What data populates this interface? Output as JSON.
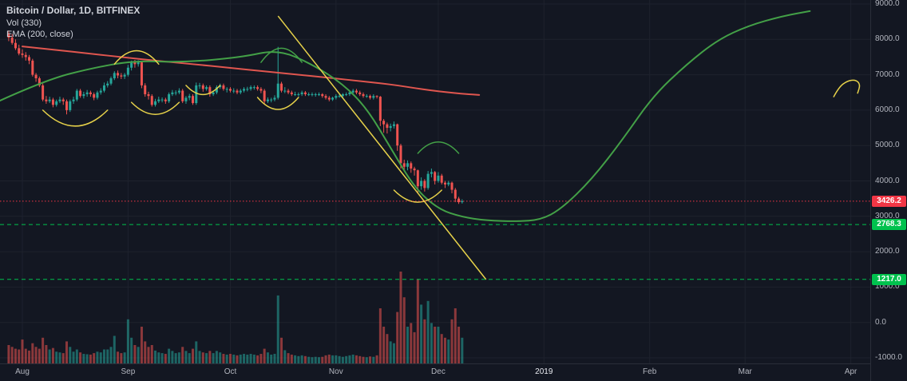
{
  "header": {
    "symbol_title": "Bitcoin / Dollar, 1D, BITFINEX",
    "volume_indicator": "Vol (330)",
    "ema_indicator": "EMA (200, close)"
  },
  "colors": {
    "background": "#131722",
    "grid": "#1e222d",
    "axis_text": "#b2b5be",
    "candle_up": "#26a69a",
    "candle_down": "#ef5350",
    "ema_line": "#e0564f",
    "drawn_curve": "#43a047",
    "trendline": "#e7d24a",
    "level_green": "#00c24e",
    "last_price": "#f23645"
  },
  "y_axis": {
    "ticks": [
      9000,
      8000,
      7000,
      6000,
      5000,
      4000,
      3000,
      2000,
      1000,
      0,
      -1000
    ]
  },
  "x_axis": {
    "labels": [
      {
        "text": "Aug",
        "day": 0
      },
      {
        "text": "Sep",
        "day": 31
      },
      {
        "text": "Oct",
        "day": 61
      },
      {
        "text": "Nov",
        "day": 92
      },
      {
        "text": "Dec",
        "day": 122
      },
      {
        "text": "2019",
        "day": 153,
        "year": true
      },
      {
        "text": "Feb",
        "day": 184
      },
      {
        "text": "Mar",
        "day": 212
      },
      {
        "text": "Apr",
        "day": 243
      }
    ]
  },
  "levels": [
    {
      "label": "3426.2",
      "price": 3426.2,
      "type": "last-price",
      "style": "dotted",
      "color_key": "last_price"
    },
    {
      "label": "2768.3",
      "price": 2768.3,
      "type": "support-level",
      "style": "dashed",
      "color_key": "level_green"
    },
    {
      "label": "1217.0",
      "price": 1217.0,
      "type": "support-level",
      "style": "dashed",
      "color_key": "level_green"
    }
  ],
  "chart_data": {
    "type": "candlestick",
    "title": "Bitcoin / Dollar, 1D, BITFINEX",
    "symbol": "BTC/USD",
    "timeframe": "1D",
    "exchange": "BITFINEX",
    "ylim": [
      -1000,
      9000
    ],
    "start_day": -4,
    "candles": [
      [
        8150,
        8250,
        7950,
        8050
      ],
      [
        8050,
        8150,
        7850,
        7900
      ],
      [
        7900,
        8000,
        7700,
        7750
      ],
      [
        7750,
        7850,
        7550,
        7600
      ],
      [
        7600,
        7720,
        7480,
        7560
      ],
      [
        7560,
        7640,
        7400,
        7500
      ],
      [
        7500,
        7560,
        7300,
        7400
      ],
      [
        7400,
        7450,
        6950,
        7000
      ],
      [
        7000,
        7050,
        6800,
        6900
      ],
      [
        6900,
        6950,
        6650,
        6700
      ],
      [
        6700,
        6750,
        6250,
        6300
      ],
      [
        6300,
        6400,
        6180,
        6250
      ],
      [
        6250,
        6380,
        6200,
        6300
      ],
      [
        6300,
        6350,
        6080,
        6150
      ],
      [
        6150,
        6300,
        6100,
        6250
      ],
      [
        6250,
        6380,
        6200,
        6300
      ],
      [
        6300,
        6350,
        6150,
        6250
      ],
      [
        6250,
        6300,
        5880,
        6000
      ],
      [
        6000,
        6300,
        5950,
        6250
      ],
      [
        6250,
        6380,
        6180,
        6300
      ],
      [
        6300,
        6600,
        6250,
        6550
      ],
      [
        6550,
        6600,
        6350,
        6400
      ],
      [
        6400,
        6520,
        6330,
        6450
      ],
      [
        6450,
        6570,
        6380,
        6500
      ],
      [
        6500,
        6550,
        6380,
        6450
      ],
      [
        6450,
        6500,
        6280,
        6350
      ],
      [
        6350,
        6550,
        6300,
        6500
      ],
      [
        6500,
        6620,
        6440,
        6550
      ],
      [
        6550,
        6780,
        6500,
        6700
      ],
      [
        6700,
        6820,
        6640,
        6750
      ],
      [
        6750,
        6950,
        6700,
        6900
      ],
      [
        6900,
        7100,
        6850,
        7050
      ],
      [
        7050,
        7120,
        6900,
        6980
      ],
      [
        6980,
        7050,
        6880,
        6950
      ],
      [
        6950,
        7050,
        6880,
        7000
      ],
      [
        7000,
        7280,
        6950,
        7200
      ],
      [
        7200,
        7400,
        7120,
        7350
      ],
      [
        7350,
        7420,
        7200,
        7300
      ],
      [
        7300,
        7410,
        7230,
        7350
      ],
      [
        7350,
        7380,
        6620,
        6700
      ],
      [
        6700,
        6760,
        6380,
        6450
      ],
      [
        6450,
        6520,
        6300,
        6400
      ],
      [
        6400,
        6450,
        6100,
        6150
      ],
      [
        6150,
        6320,
        6100,
        6250
      ],
      [
        6250,
        6380,
        6200,
        6300
      ],
      [
        6300,
        6360,
        6220,
        6300
      ],
      [
        6300,
        6350,
        6180,
        6250
      ],
      [
        6250,
        6500,
        6200,
        6450
      ],
      [
        6450,
        6570,
        6400,
        6500
      ],
      [
        6500,
        6560,
        6420,
        6500
      ],
      [
        6500,
        6620,
        6450,
        6550
      ],
      [
        6550,
        6600,
        6200,
        6250
      ],
      [
        6250,
        6400,
        6180,
        6350
      ],
      [
        6350,
        6460,
        6280,
        6400
      ],
      [
        6400,
        6450,
        6150,
        6200
      ],
      [
        6200,
        6780,
        6150,
        6700
      ],
      [
        6700,
        6770,
        6600,
        6700
      ],
      [
        6700,
        6750,
        6520,
        6600
      ],
      [
        6600,
        6700,
        6550,
        6650
      ],
      [
        6650,
        6700,
        6380,
        6450
      ],
      [
        6450,
        6550,
        6400,
        6500
      ],
      [
        6500,
        6700,
        6450,
        6650
      ],
      [
        6650,
        6750,
        6600,
        6700
      ],
      [
        6700,
        6750,
        6550,
        6600
      ],
      [
        6600,
        6650,
        6500,
        6600
      ],
      [
        6600,
        6650,
        6500,
        6550
      ],
      [
        6550,
        6620,
        6480,
        6550
      ],
      [
        6550,
        6600,
        6450,
        6500
      ],
      [
        6500,
        6600,
        6450,
        6550
      ],
      [
        6550,
        6650,
        6500,
        6600
      ],
      [
        6600,
        6660,
        6530,
        6600
      ],
      [
        6600,
        6700,
        6550,
        6650
      ],
      [
        6650,
        6700,
        6580,
        6650
      ],
      [
        6650,
        6700,
        6550,
        6600
      ],
      [
        6600,
        6650,
        6480,
        6550
      ],
      [
        6550,
        6600,
        6180,
        6250
      ],
      [
        6250,
        6360,
        6200,
        6300
      ],
      [
        6300,
        6350,
        6220,
        6300
      ],
      [
        6300,
        6420,
        6250,
        6350
      ],
      [
        6350,
        7788,
        6300,
        6750
      ],
      [
        6750,
        6800,
        6500,
        6550
      ],
      [
        6550,
        6650,
        6480,
        6550
      ],
      [
        6550,
        6600,
        6450,
        6500
      ],
      [
        6500,
        6550,
        6400,
        6450
      ],
      [
        6450,
        6520,
        6400,
        6450
      ],
      [
        6450,
        6500,
        6390,
        6450
      ],
      [
        6450,
        6550,
        6400,
        6500
      ],
      [
        6500,
        6540,
        6400,
        6450
      ],
      [
        6450,
        6500,
        6400,
        6450
      ],
      [
        6450,
        6500,
        6390,
        6450
      ],
      [
        6450,
        6490,
        6380,
        6450
      ],
      [
        6450,
        6500,
        6400,
        6450
      ],
      [
        6450,
        6480,
        6350,
        6400
      ],
      [
        6400,
        6450,
        6300,
        6350
      ],
      [
        6350,
        6400,
        6250,
        6300
      ],
      [
        6300,
        6380,
        6260,
        6350
      ],
      [
        6350,
        6450,
        6300,
        6400
      ],
      [
        6400,
        6450,
        6350,
        6400
      ],
      [
        6400,
        6480,
        6350,
        6450
      ],
      [
        6450,
        6500,
        6400,
        6450
      ],
      [
        6450,
        6550,
        6400,
        6500
      ],
      [
        6500,
        6600,
        6450,
        6550
      ],
      [
        6550,
        6600,
        6450,
        6500
      ],
      [
        6500,
        6550,
        6400,
        6450
      ],
      [
        6450,
        6500,
        6350,
        6400
      ],
      [
        6400,
        6450,
        6350,
        6400
      ],
      [
        6400,
        6440,
        6300,
        6350
      ],
      [
        6350,
        6450,
        6300,
        6400
      ],
      [
        6400,
        6420,
        6330,
        6380
      ],
      [
        6380,
        6400,
        5550,
        5700
      ],
      [
        5700,
        5750,
        5360,
        5600
      ],
      [
        5600,
        5650,
        5340,
        5500
      ],
      [
        5500,
        5620,
        5400,
        5550
      ],
      [
        5550,
        5680,
        5480,
        5600
      ],
      [
        5600,
        5620,
        4850,
        5000
      ],
      [
        5000,
        5050,
        4350,
        4500
      ],
      [
        4500,
        4600,
        4280,
        4400
      ],
      [
        4400,
        4580,
        4300,
        4500
      ],
      [
        4500,
        4550,
        4230,
        4350
      ],
      [
        4350,
        4400,
        4150,
        4300
      ],
      [
        4300,
        4320,
        3650,
        3850
      ],
      [
        3850,
        4100,
        3750,
        4000
      ],
      [
        4000,
        4050,
        3700,
        3800
      ],
      [
        3800,
        4280,
        3750,
        4200
      ],
      [
        4200,
        4350,
        4100,
        4250
      ],
      [
        4250,
        4280,
        3900,
        4000
      ],
      [
        4000,
        4250,
        3950,
        4150
      ],
      [
        4150,
        4200,
        3900,
        3950
      ],
      [
        3950,
        4000,
        3800,
        3900
      ],
      [
        3900,
        4000,
        3850,
        3950
      ],
      [
        3950,
        3980,
        3650,
        3750
      ],
      [
        3750,
        3800,
        3400,
        3500
      ],
      [
        3500,
        3550,
        3350,
        3400
      ],
      [
        3400,
        3480,
        3360,
        3426.2
      ]
    ],
    "volumes": [
      50,
      45,
      40,
      38,
      65,
      40,
      35,
      55,
      45,
      40,
      70,
      50,
      38,
      42,
      32,
      30,
      28,
      60,
      45,
      32,
      38,
      30,
      26,
      25,
      24,
      28,
      32,
      30,
      38,
      38,
      45,
      75,
      32,
      28,
      30,
      120,
      70,
      50,
      45,
      100,
      60,
      45,
      50,
      35,
      30,
      28,
      26,
      40,
      34,
      28,
      30,
      45,
      34,
      28,
      40,
      60,
      34,
      30,
      28,
      34,
      28,
      34,
      30,
      26,
      24,
      26,
      24,
      22,
      24,
      26,
      24,
      26,
      24,
      22,
      26,
      40,
      30,
      24,
      26,
      185,
      70,
      36,
      28,
      24,
      22,
      20,
      22,
      20,
      18,
      17,
      18,
      17,
      18,
      22,
      24,
      22,
      22,
      20,
      18,
      20,
      22,
      24,
      22,
      20,
      18,
      17,
      19,
      18,
      22,
      150,
      100,
      80,
      60,
      55,
      140,
      250,
      180,
      100,
      110,
      85,
      230,
      160,
      120,
      170,
      110,
      100,
      100,
      80,
      70,
      65,
      120,
      150,
      100,
      70
    ],
    "ema_200": [
      [
        0,
        7800
      ],
      [
        10,
        7700
      ],
      [
        20,
        7595
      ],
      [
        30,
        7490
      ],
      [
        40,
        7390
      ],
      [
        50,
        7300
      ],
      [
        60,
        7205
      ],
      [
        70,
        7105
      ],
      [
        80,
        7010
      ],
      [
        90,
        6915
      ],
      [
        100,
        6810
      ],
      [
        105,
        6760
      ],
      [
        110,
        6700
      ],
      [
        115,
        6625
      ],
      [
        120,
        6555
      ],
      [
        125,
        6500
      ],
      [
        130,
        6455
      ],
      [
        134,
        6430
      ]
    ],
    "drawn_curve": [
      [
        -7,
        6250
      ],
      [
        7,
        6860
      ],
      [
        21,
        7200
      ],
      [
        33,
        7400
      ],
      [
        47,
        7350
      ],
      [
        64,
        7490
      ],
      [
        75,
        7715
      ],
      [
        85,
        7300
      ],
      [
        94,
        6740
      ],
      [
        101,
        6060
      ],
      [
        108,
        4940
      ],
      [
        115,
        3810
      ],
      [
        122,
        3200
      ],
      [
        129,
        2980
      ],
      [
        136,
        2880
      ],
      [
        145,
        2855
      ],
      [
        152,
        2900
      ],
      [
        158,
        3200
      ],
      [
        167,
        4040
      ],
      [
        176,
        5160
      ],
      [
        185,
        6400
      ],
      [
        195,
        7310
      ],
      [
        204,
        7990
      ],
      [
        213,
        8390
      ],
      [
        223,
        8660
      ],
      [
        231,
        8800
      ]
    ],
    "trendline": {
      "from": [
        75,
        8660
      ],
      "to": [
        136,
        1215
      ]
    },
    "hook": [
      [
        238,
        6380
      ],
      [
        239.5,
        6650
      ],
      [
        242,
        6830
      ],
      [
        244.5,
        6860
      ],
      [
        245.8,
        6720
      ],
      [
        245,
        6480
      ]
    ],
    "arcs": [
      {
        "d1": 6,
        "d2": 25,
        "p": 6000,
        "c": -900,
        "color": "trendline"
      },
      {
        "d1": 27,
        "d2": 40,
        "p": 7300,
        "c": 760,
        "color": "trendline"
      },
      {
        "d1": 32,
        "d2": 46,
        "p": 6220,
        "c": -680,
        "color": "trendline"
      },
      {
        "d1": 48,
        "d2": 58,
        "p": 6700,
        "c": -520,
        "color": "trendline"
      },
      {
        "d1": 70,
        "d2": 82,
        "p": 7350,
        "c": 800,
        "color": "drawn_curve"
      },
      {
        "d1": 69,
        "d2": 81,
        "p": 6360,
        "c": -680,
        "color": "trendline"
      },
      {
        "d1": 109,
        "d2": 123,
        "p": 3740,
        "c": -680,
        "color": "trendline"
      },
      {
        "d1": 116,
        "d2": 128,
        "p": 4780,
        "c": 640,
        "color": "drawn_curve"
      }
    ]
  }
}
